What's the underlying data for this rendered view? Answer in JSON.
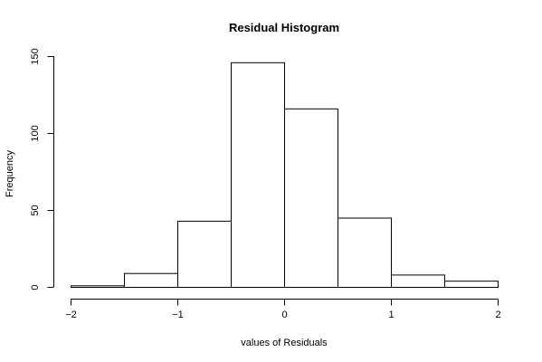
{
  "chart_data": {
    "type": "bar",
    "title": "Residual Histogram",
    "xlabel": "values of Residuals",
    "ylabel": "Frequency",
    "bins": [
      {
        "start": -2.0,
        "end": -1.5,
        "count": 1
      },
      {
        "start": -1.5,
        "end": -1.0,
        "count": 9
      },
      {
        "start": -1.0,
        "end": -0.5,
        "count": 43
      },
      {
        "start": -0.5,
        "end": 0.0,
        "count": 146
      },
      {
        "start": 0.0,
        "end": 0.5,
        "count": 116
      },
      {
        "start": 0.5,
        "end": 1.0,
        "count": 45
      },
      {
        "start": 1.0,
        "end": 1.5,
        "count": 8
      },
      {
        "start": 1.5,
        "end": 2.0,
        "count": 4
      }
    ],
    "xlim": [
      -2,
      2
    ],
    "ylim": [
      0,
      150
    ],
    "xticks": [
      -2,
      -1,
      0,
      1,
      2
    ],
    "xtick_labels": [
      "−2",
      "−1",
      "0",
      "1",
      "2"
    ],
    "yticks": [
      0,
      50,
      100,
      150
    ],
    "ytick_labels": [
      "0",
      "50",
      "100",
      "150"
    ],
    "grid": false,
    "legend": "none"
  }
}
